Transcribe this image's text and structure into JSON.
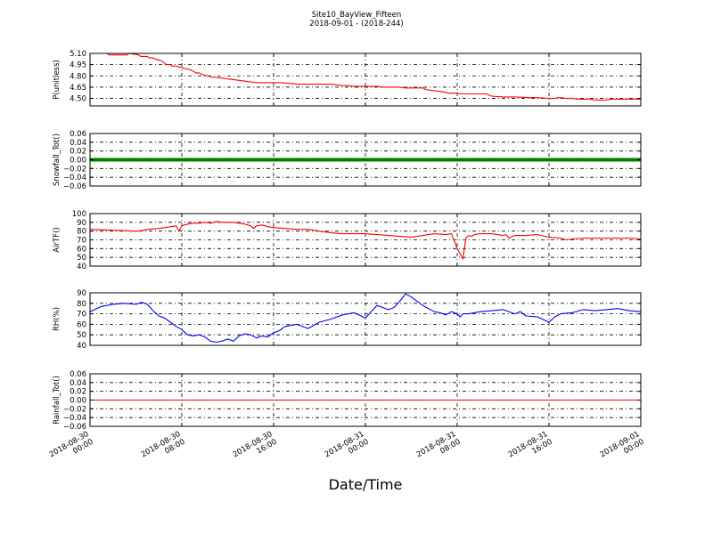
{
  "figure": {
    "title": "Site10_BayView_Fifteen",
    "subtitle": "2018-09-01 - (2018-244)",
    "xlabel": "Date/Time"
  },
  "chart_data": [
    {
      "type": "line",
      "ylabel": "P(unitless)",
      "ylim": [
        4.4,
        5.1
      ],
      "yticks": [
        4.5,
        4.65,
        4.8,
        4.95,
        5.1
      ],
      "ytick_labels": [
        "4.50",
        "4.65",
        "4.80",
        "4.95",
        "5.10"
      ],
      "grid": true,
      "series": [
        {
          "color": "#ff0000",
          "x": [
            0,
            3,
            3.3,
            6.5,
            6.8,
            8.5,
            8.8,
            10,
            10.3,
            11,
            11.5,
            12.5,
            13,
            13.3,
            14,
            14.3,
            15,
            16.5,
            17.5,
            18,
            18.5,
            19,
            19.5,
            20.5,
            21.5,
            22,
            23,
            24,
            26,
            27,
            28,
            29,
            33,
            35,
            36,
            42,
            43,
            44,
            45,
            46,
            47,
            48,
            50,
            51,
            54,
            55,
            56,
            58,
            58.5,
            60,
            60.5,
            62,
            62.5,
            64,
            64.5,
            69,
            70,
            72,
            74,
            77,
            78,
            80,
            81,
            81.5,
            82,
            83,
            84,
            85,
            87,
            88,
            88.5,
            90,
            91,
            92,
            93,
            94,
            96
          ],
          "y": [
            5.1,
            5.1,
            5.08,
            5.08,
            5.1,
            5.08,
            5.06,
            5.06,
            5.04,
            5.04,
            5.02,
            5.0,
            4.97,
            4.95,
            4.95,
            4.93,
            4.93,
            4.9,
            4.88,
            4.86,
            4.84,
            4.84,
            4.82,
            4.8,
            4.78,
            4.78,
            4.77,
            4.76,
            4.74,
            4.73,
            4.72,
            4.71,
            4.71,
            4.7,
            4.69,
            4.69,
            4.68,
            4.67,
            4.67,
            4.66,
            4.66,
            4.66,
            4.66,
            4.65,
            4.65,
            4.64,
            4.64,
            4.64,
            4.62,
            4.6,
            4.6,
            4.58,
            4.57,
            4.57,
            4.56,
            4.56,
            4.53,
            4.52,
            4.52,
            4.51,
            4.51,
            4.5,
            4.5,
            4.51,
            4.51,
            4.5,
            4.5,
            4.49,
            4.49,
            4.48,
            4.48,
            4.48,
            4.49,
            4.49,
            4.49,
            4.49,
            4.49
          ]
        }
      ]
    },
    {
      "type": "line",
      "ylabel": "Snowfall_Tot()",
      "ylim": [
        -0.06,
        0.06
      ],
      "yticks": [
        -0.06,
        -0.04,
        -0.02,
        0.0,
        0.02,
        0.04,
        0.06
      ],
      "ytick_labels": [
        "−0.06",
        "−0.04",
        "−0.02",
        "0.00",
        "0.02",
        "0.04",
        "0.06"
      ],
      "grid": true,
      "series": [
        {
          "color": "#008000",
          "x": [
            0,
            96
          ],
          "y": [
            0,
            0
          ]
        }
      ]
    },
    {
      "type": "line",
      "ylabel": "AirTF()",
      "ylim": [
        40,
        100
      ],
      "yticks": [
        40,
        50,
        60,
        70,
        80,
        90,
        100
      ],
      "ytick_labels": [
        "40",
        "50",
        "60",
        "70",
        "80",
        "90",
        "100"
      ],
      "grid": true,
      "series": [
        {
          "color": "#ff0000",
          "x": [
            0,
            2,
            4,
            6,
            8,
            9,
            10,
            12,
            14,
            15,
            15.5,
            16,
            17,
            18,
            19,
            20,
            21,
            22,
            23,
            24,
            25,
            26,
            27,
            28,
            28.5,
            29,
            30,
            31,
            32,
            34,
            36,
            38,
            40,
            42,
            44,
            46,
            48,
            50,
            52,
            54,
            56,
            58,
            60,
            62,
            63,
            64,
            65,
            65.5,
            66,
            66.5,
            67,
            68,
            70,
            72,
            72.5,
            73,
            74,
            76,
            78,
            80,
            82,
            83,
            84,
            86,
            88,
            90,
            92,
            94,
            96
          ],
          "y": [
            82,
            81.5,
            81,
            80.5,
            80,
            80.5,
            82,
            83,
            85,
            86,
            80,
            86,
            88,
            89,
            89,
            90,
            89,
            91,
            90,
            90,
            90,
            89,
            88,
            86,
            83,
            86,
            87,
            85,
            84,
            83,
            82,
            82,
            80,
            78,
            77,
            77,
            77,
            76,
            75,
            74,
            73,
            75,
            77,
            76,
            77,
            60,
            48,
            72,
            75,
            74,
            76,
            77,
            77,
            75,
            76,
            72,
            75,
            75,
            76,
            73,
            72,
            70,
            71,
            72,
            72,
            72,
            72,
            72,
            71
          ]
        }
      ]
    },
    {
      "type": "line",
      "ylabel": "RH(%)",
      "ylim": [
        40,
        90
      ],
      "yticks": [
        40,
        50,
        60,
        70,
        80,
        90
      ],
      "ytick_labels": [
        "40",
        "50",
        "60",
        "70",
        "80",
        "90"
      ],
      "grid": true,
      "series": [
        {
          "color": "#0000ff",
          "x": [
            0,
            2,
            4,
            6,
            8,
            9,
            10,
            11,
            12,
            13,
            14,
            15,
            16,
            17,
            18,
            19,
            20,
            21,
            22,
            23,
            24,
            25,
            26,
            27,
            28,
            29,
            30,
            31,
            32,
            33,
            34,
            35,
            36,
            38,
            40,
            42,
            44,
            46,
            48,
            50,
            51,
            52,
            53,
            54,
            55,
            56,
            57,
            58,
            59,
            60,
            61,
            62,
            63,
            64,
            64.5,
            65,
            66,
            68,
            70,
            72,
            74,
            75,
            76,
            78,
            80,
            81,
            82,
            84,
            86,
            88,
            90,
            92,
            94,
            96
          ],
          "y": [
            72,
            77,
            79,
            80,
            79,
            81,
            79,
            73,
            68,
            66,
            62,
            58,
            55,
            50,
            49,
            50,
            48,
            44,
            43,
            44,
            46,
            44,
            49,
            51,
            50,
            47,
            49,
            48,
            52,
            54,
            58,
            59,
            60,
            56,
            62,
            65,
            69,
            71,
            66,
            78,
            76,
            74,
            76,
            82,
            89,
            86,
            82,
            78,
            75,
            72,
            71,
            69,
            72,
            70,
            67,
            70,
            70,
            72,
            73,
            74,
            70,
            72,
            68,
            67,
            62,
            67,
            70,
            71,
            74,
            73,
            74,
            75,
            73,
            72
          ]
        }
      ]
    },
    {
      "type": "line",
      "ylabel": "Rainfall_Tot()",
      "ylim": [
        -0.06,
        0.06
      ],
      "yticks": [
        -0.06,
        -0.04,
        -0.02,
        0.0,
        0.02,
        0.04,
        0.06
      ],
      "ytick_labels": [
        "−0.06",
        "−0.04",
        "−0.02",
        "0.00",
        "0.02",
        "0.04",
        "0.06"
      ],
      "grid": true,
      "series": [
        {
          "color": "#ff0000",
          "x": [
            0,
            96
          ],
          "y": [
            0,
            0
          ]
        }
      ]
    }
  ],
  "x_axis": {
    "xlim": [
      0,
      96
    ],
    "ticks": [
      0,
      16,
      32,
      48,
      64,
      80,
      96
    ],
    "tick_labels": [
      [
        "2018-08-30",
        "00:00"
      ],
      [
        "2018-08-30",
        "08:00"
      ],
      [
        "2018-08-30",
        "16:00"
      ],
      [
        "2018-08-31",
        "00:00"
      ],
      [
        "2018-08-31",
        "08:00"
      ],
      [
        "2018-08-31",
        "16:00"
      ],
      [
        "2018-09-01",
        "00:00"
      ]
    ]
  }
}
